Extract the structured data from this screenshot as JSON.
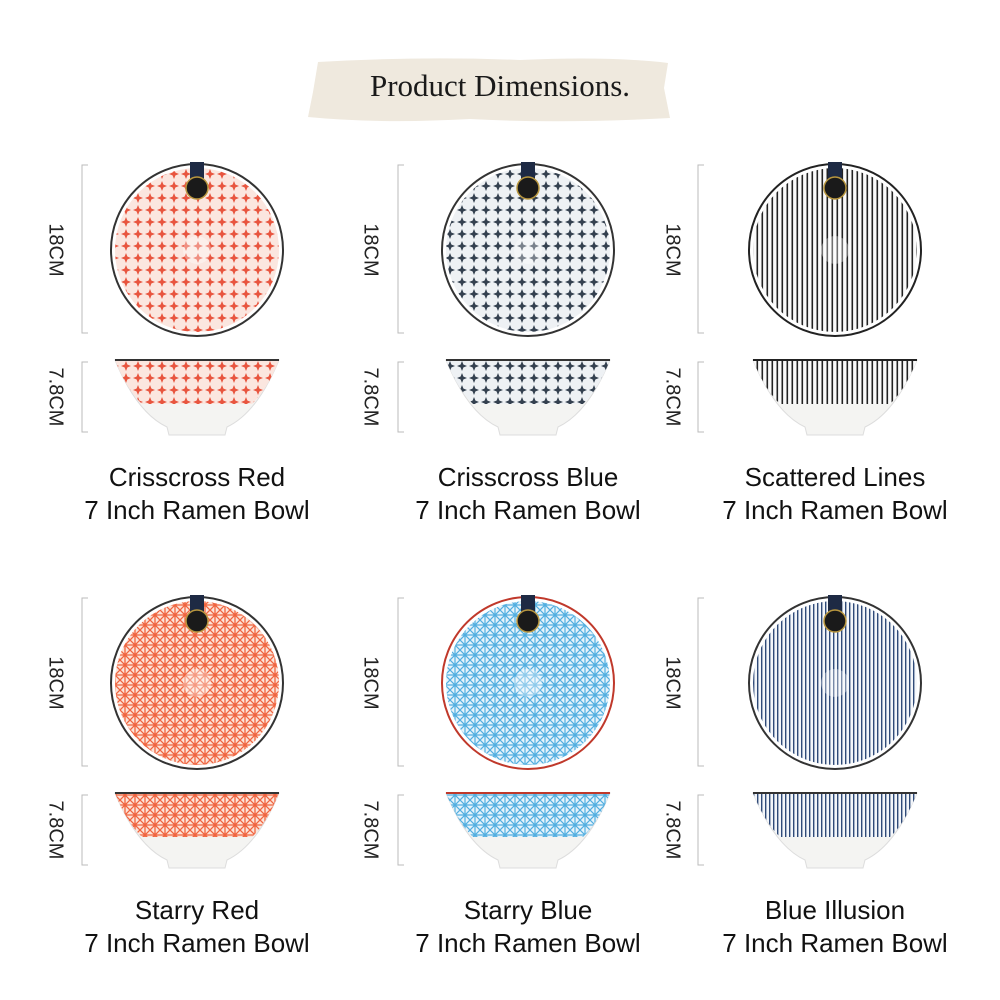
{
  "header": {
    "title": "Product Dimensions."
  },
  "products": [
    {
      "name": "Crisscross Red",
      "subtitle": "7 Inch Ramen Bowl",
      "height": "18CM",
      "depth": "7.8CM"
    },
    {
      "name": "Crisscross Blue",
      "subtitle": "7 Inch Ramen Bowl",
      "height": "18CM",
      "depth": "7.8CM"
    },
    {
      "name": "Scattered Lines",
      "subtitle": "7 Inch Ramen Bowl",
      "height": "18CM",
      "depth": "7.8CM"
    },
    {
      "name": "Starry Red",
      "subtitle": "7 Inch Ramen Bowl",
      "height": "18CM",
      "depth": "7.8CM"
    },
    {
      "name": "Starry Blue",
      "subtitle": "7 Inch Ramen Bowl",
      "height": "18CM",
      "depth": "7.8CM"
    },
    {
      "name": "Blue Illusion",
      "subtitle": "7 Inch Ramen Bowl",
      "height": "18CM",
      "depth": "7.8CM"
    }
  ]
}
